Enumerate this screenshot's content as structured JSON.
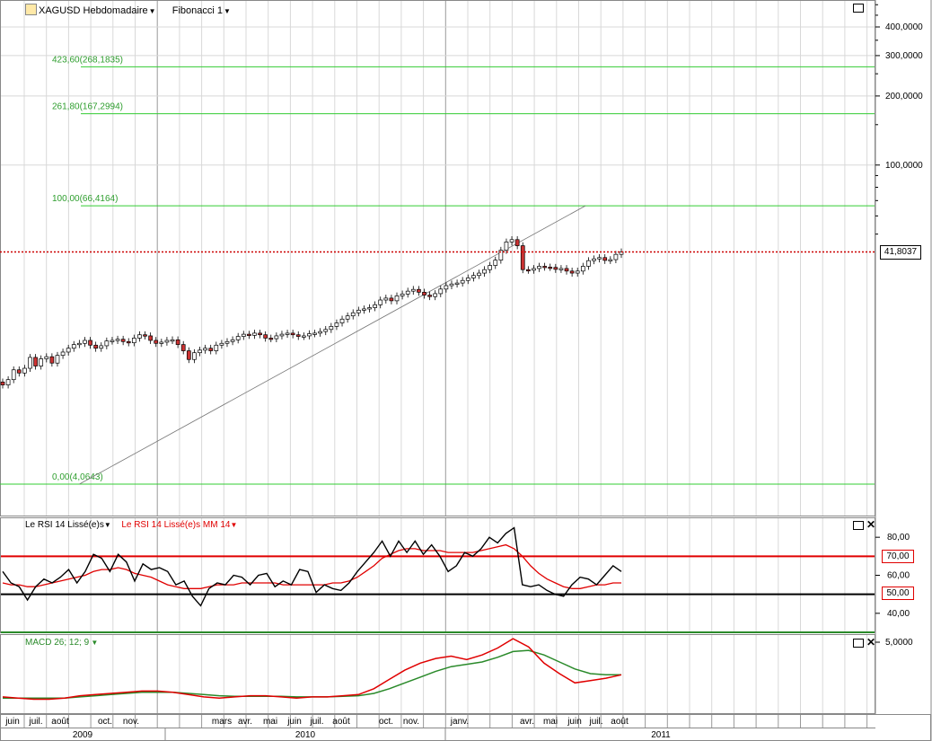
{
  "header": {
    "symbol": "XAGUSD Hebdomadaire",
    "study": "Fibonacci 1"
  },
  "colors": {
    "fib": "#33cc33",
    "up": "#ffffff",
    "down": "#cc3333",
    "rsi": "#000000",
    "rsi_ma": "#e00000",
    "macd": "#e00000",
    "signal": "#2a8a2a",
    "grid": "#d8d8d8"
  },
  "icons": {
    "maximize": "maximize-icon",
    "close": "close-icon",
    "symbol": "pencil-icon"
  },
  "chart_data": [
    {
      "type": "candlestick",
      "title": "XAGUSD Hebdomadaire",
      "scale": "log",
      "y_ticks": [
        "400,0000",
        "300,0000",
        "200,0000",
        "100,0000"
      ],
      "last_price": "41,8037",
      "fib_levels": [
        {
          "label": "423,60(268,1835)",
          "value": 268.1835
        },
        {
          "label": "261,80(167,2994)",
          "value": 167.2994
        },
        {
          "label": "100,00(66,4164)",
          "value": 66.4164
        },
        {
          "label": "0,00(4,0643)",
          "value": 4.0643
        }
      ],
      "fib_line": {
        "from": {
          "week": 14,
          "price": 4.0643
        },
        "to": {
          "week": 85,
          "price": 66.4164
        }
      },
      "weekly_close": [
        11.0,
        11.6,
        12.8,
        12.4,
        13.0,
        14.5,
        13.3,
        14.3,
        14.6,
        13.7,
        14.8,
        15.3,
        15.9,
        16.5,
        16.7,
        17.2,
        16.4,
        15.9,
        16.3,
        17.1,
        17.2,
        17.4,
        17.0,
        16.8,
        17.6,
        18.2,
        18.0,
        17.2,
        16.7,
        16.9,
        17.2,
        17.3,
        16.5,
        15.5,
        14.2,
        15.2,
        15.6,
        15.9,
        15.5,
        16.4,
        16.7,
        17.0,
        17.3,
        17.9,
        18.3,
        18.1,
        18.5,
        18.2,
        17.6,
        17.5,
        18.0,
        18.3,
        18.5,
        18.2,
        17.9,
        18.0,
        18.4,
        18.5,
        18.8,
        19.2,
        19.8,
        20.5,
        21.3,
        22.0,
        22.7,
        23.3,
        23.6,
        23.9,
        24.6,
        25.8,
        26.3,
        25.6,
        26.9,
        27.4,
        28.2,
        28.7,
        27.9,
        27.1,
        26.7,
        27.5,
        28.8,
        29.8,
        30.3,
        30.6,
        31.4,
        32.2,
        33.0,
        33.8,
        35.0,
        36.5,
        38.5,
        42.5,
        46.2,
        47.3,
        44.5,
        35.0,
        34.8,
        35.4,
        36.2,
        35.9,
        35.8,
        35.1,
        35.4,
        34.5,
        33.8,
        34.5,
        36.2,
        38.3,
        39.0,
        39.5,
        38.4,
        38.7,
        40.8,
        41.8
      ]
    },
    {
      "type": "line",
      "title": "Le RSI 14 Lissé(e)s",
      "ma_title": "Le RSI 14 Lissé(e)s MM 14",
      "ylim": [
        30,
        90
      ],
      "y_ticks": [
        "80,00",
        "60,00",
        "40,00"
      ],
      "overbought": "70,00",
      "midline": "50,00",
      "series": [
        {
          "values": [
            62,
            56,
            54,
            47,
            54,
            58,
            56,
            59,
            63,
            56,
            62,
            71,
            69,
            62,
            71,
            67,
            57,
            66,
            63,
            64,
            62,
            55,
            57,
            49,
            44,
            53,
            56,
            55,
            60,
            59,
            55,
            60,
            61,
            54,
            57,
            55,
            63,
            62,
            51,
            55,
            53,
            52,
            56,
            62,
            67,
            72,
            78,
            70,
            78,
            72,
            78,
            71,
            76,
            70,
            62,
            65,
            72,
            70,
            74,
            80,
            77,
            82,
            85,
            55,
            54,
            55,
            52,
            50,
            49,
            55,
            59,
            58,
            55,
            60,
            65,
            62
          ]
        },
        {
          "name": "Le RSI 14 Lissé(e)s MM 14",
          "values": [
            56,
            55,
            55,
            54,
            54,
            55,
            56,
            57,
            58,
            59,
            60,
            62,
            63,
            63,
            64,
            63,
            61,
            60,
            59,
            57,
            55,
            54,
            53,
            53,
            53,
            54,
            55,
            55,
            55,
            56,
            56,
            56,
            56,
            56,
            55,
            55,
            55,
            55,
            55,
            55,
            56,
            56,
            57,
            59,
            62,
            65,
            69,
            71,
            73,
            74,
            74,
            73,
            73,
            73,
            72,
            72,
            72,
            72,
            73,
            74,
            75,
            76,
            74,
            70,
            65,
            61,
            58,
            56,
            54,
            53,
            53,
            54,
            55,
            55,
            56,
            56
          ]
        }
      ]
    },
    {
      "type": "line",
      "title": "MACD  26; 12; 9",
      "y_ticks": [
        "5,0000"
      ],
      "series": [
        {
          "values": [
            0.3,
            0.2,
            0.1,
            0.1,
            0.2,
            0.4,
            0.5,
            0.6,
            0.7,
            0.8,
            0.8,
            0.7,
            0.5,
            0.3,
            0.2,
            0.3,
            0.4,
            0.4,
            0.3,
            0.2,
            0.3,
            0.3,
            0.4,
            0.5,
            1.0,
            1.8,
            2.6,
            3.2,
            3.6,
            3.8,
            3.5,
            3.9,
            4.5,
            5.3,
            4.6,
            3.2,
            2.3,
            1.5,
            1.7,
            1.9,
            2.2
          ]
        },
        {
          "values": [
            0.2,
            0.2,
            0.2,
            0.2,
            0.2,
            0.3,
            0.4,
            0.5,
            0.6,
            0.7,
            0.7,
            0.7,
            0.6,
            0.5,
            0.4,
            0.35,
            0.35,
            0.35,
            0.35,
            0.3,
            0.3,
            0.3,
            0.35,
            0.4,
            0.6,
            1.0,
            1.5,
            2.0,
            2.5,
            2.9,
            3.1,
            3.3,
            3.7,
            4.2,
            4.3,
            3.9,
            3.3,
            2.7,
            2.3,
            2.2,
            2.2
          ]
        }
      ]
    }
  ],
  "x_axis": {
    "months": [
      {
        "label": "juin",
        "x": 14
      },
      {
        "label": "juil.",
        "x": 40
      },
      {
        "label": "août",
        "x": 67
      },
      {
        "label": "oct.",
        "x": 117
      },
      {
        "label": "nov.",
        "x": 146
      },
      {
        "label": "mars",
        "x": 247
      },
      {
        "label": "avr.",
        "x": 273
      },
      {
        "label": "mai",
        "x": 301
      },
      {
        "label": "juin",
        "x": 328
      },
      {
        "label": "juil.",
        "x": 353
      },
      {
        "label": "août",
        "x": 380
      },
      {
        "label": "oct.",
        "x": 430
      },
      {
        "label": "nov.",
        "x": 458
      },
      {
        "label": "janv.",
        "x": 512
      },
      {
        "label": "avr.",
        "x": 587
      },
      {
        "label": "mai",
        "x": 613
      },
      {
        "label": "juin",
        "x": 640
      },
      {
        "label": "juil.",
        "x": 664
      },
      {
        "label": "août",
        "x": 690
      }
    ],
    "years": [
      {
        "label": "2009",
        "x": 92
      },
      {
        "label": "2010",
        "x": 340
      },
      {
        "label": "2011",
        "x": 736
      }
    ]
  }
}
